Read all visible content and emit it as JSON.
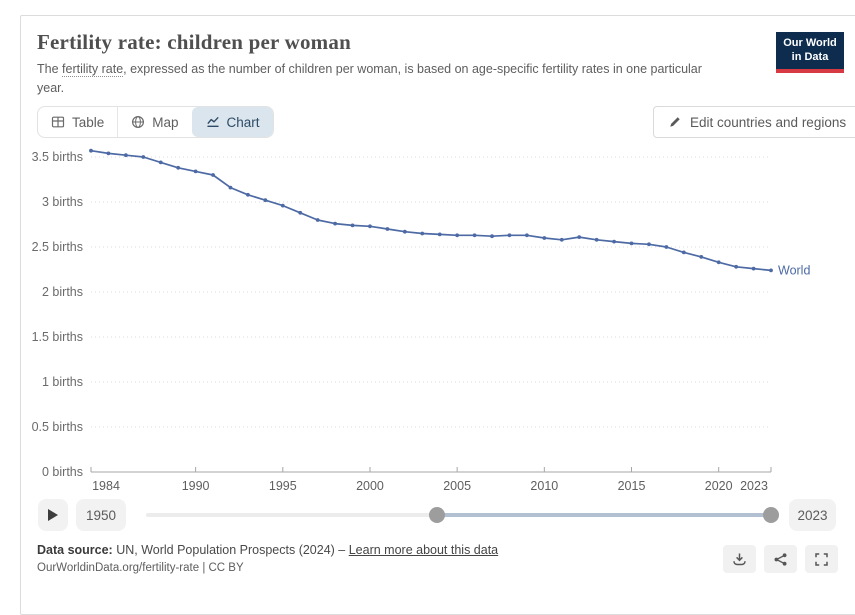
{
  "header": {
    "title": "Fertility rate: children per woman",
    "subtitle_prefix": "The ",
    "subtitle_link": "fertility rate",
    "subtitle_suffix": ", expressed as the number of children per woman, is based on age-specific fertility rates in one particular\nyear.",
    "logo": {
      "line1": "Our World",
      "line2": "in Data",
      "navy": "#0d2c4e",
      "red": "#d73a43"
    }
  },
  "toolbar": {
    "tabs": [
      {
        "label": "Table",
        "active": false
      },
      {
        "label": "Map",
        "active": false
      },
      {
        "label": "Chart",
        "active": true
      }
    ],
    "active_tab_bg": "#dbe5ee",
    "edit_button": "Edit countries and regions"
  },
  "chart_data": {
    "type": "line",
    "title": "Fertility rate: children per woman",
    "xlabel": "",
    "ylabel": "births",
    "ylim": [
      0,
      3.7
    ],
    "grid": "dotted horizontal",
    "legend_position": "end-of-line label",
    "x": [
      1984,
      1985,
      1986,
      1987,
      1988,
      1989,
      1990,
      1991,
      1992,
      1993,
      1994,
      1995,
      1996,
      1997,
      1998,
      1999,
      2000,
      2001,
      2002,
      2003,
      2004,
      2005,
      2006,
      2007,
      2008,
      2009,
      2010,
      2011,
      2012,
      2013,
      2014,
      2015,
      2016,
      2017,
      2018,
      2019,
      2020,
      2021,
      2022,
      2023
    ],
    "series": [
      {
        "name": "World",
        "color": "#4d6aa5",
        "values": [
          3.57,
          3.54,
          3.52,
          3.5,
          3.44,
          3.38,
          3.34,
          3.3,
          3.16,
          3.08,
          3.02,
          2.96,
          2.88,
          2.8,
          2.76,
          2.74,
          2.73,
          2.7,
          2.67,
          2.65,
          2.64,
          2.63,
          2.63,
          2.62,
          2.63,
          2.63,
          2.6,
          2.58,
          2.61,
          2.58,
          2.56,
          2.54,
          2.53,
          2.5,
          2.44,
          2.39,
          2.33,
          2.28,
          2.26,
          2.24
        ]
      }
    ],
    "yticks": [
      0,
      0.5,
      1,
      1.5,
      2,
      2.5,
      3,
      3.5
    ],
    "ytick_labels": [
      "0 births",
      "0.5 births",
      "1 births",
      "1.5 births",
      "2 births",
      "2.5 births",
      "3 births",
      "3.5 births"
    ],
    "xticks": [
      1984,
      1990,
      1995,
      2000,
      2005,
      2010,
      2015,
      2020,
      2023
    ]
  },
  "timeline": {
    "start_label": "1950",
    "end_label": "2023",
    "range": [
      1950,
      2023
    ],
    "selected": [
      1984,
      2023
    ]
  },
  "footer": {
    "source_label": "Data source:",
    "source_text": " UN, World Population Prospects (2024) – ",
    "source_link": "Learn more about this data",
    "attribution": "OurWorldinData.org/fertility-rate | CC BY"
  }
}
